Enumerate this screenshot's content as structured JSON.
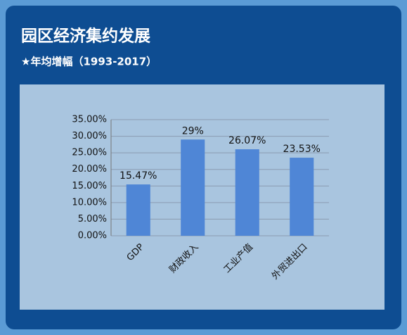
{
  "chart_data": {
    "type": "bar",
    "title": "园区经济集约发展",
    "subtitle": "★年均增幅（1993-2017）",
    "categories": [
      "GDP",
      "财政收入",
      "工业产值",
      "外贸进出口"
    ],
    "values": [
      15.47,
      29,
      26.07,
      23.53
    ],
    "value_labels": [
      "15.47%",
      "29%",
      "26.07%",
      "23.53%"
    ],
    "color": "#4f86d6",
    "ylim": [
      0,
      35
    ],
    "yticks": [
      {
        "value": 0,
        "label": "0.00%"
      },
      {
        "value": 5,
        "label": "5.00%"
      },
      {
        "value": 10,
        "label": "10.00%"
      },
      {
        "value": 15,
        "label": "15.00%"
      },
      {
        "value": 20,
        "label": "20.00%"
      },
      {
        "value": 25,
        "label": "25.00%"
      },
      {
        "value": 30,
        "label": "30.00%"
      },
      {
        "value": 35,
        "label": "35.00%"
      }
    ],
    "grid": true
  }
}
